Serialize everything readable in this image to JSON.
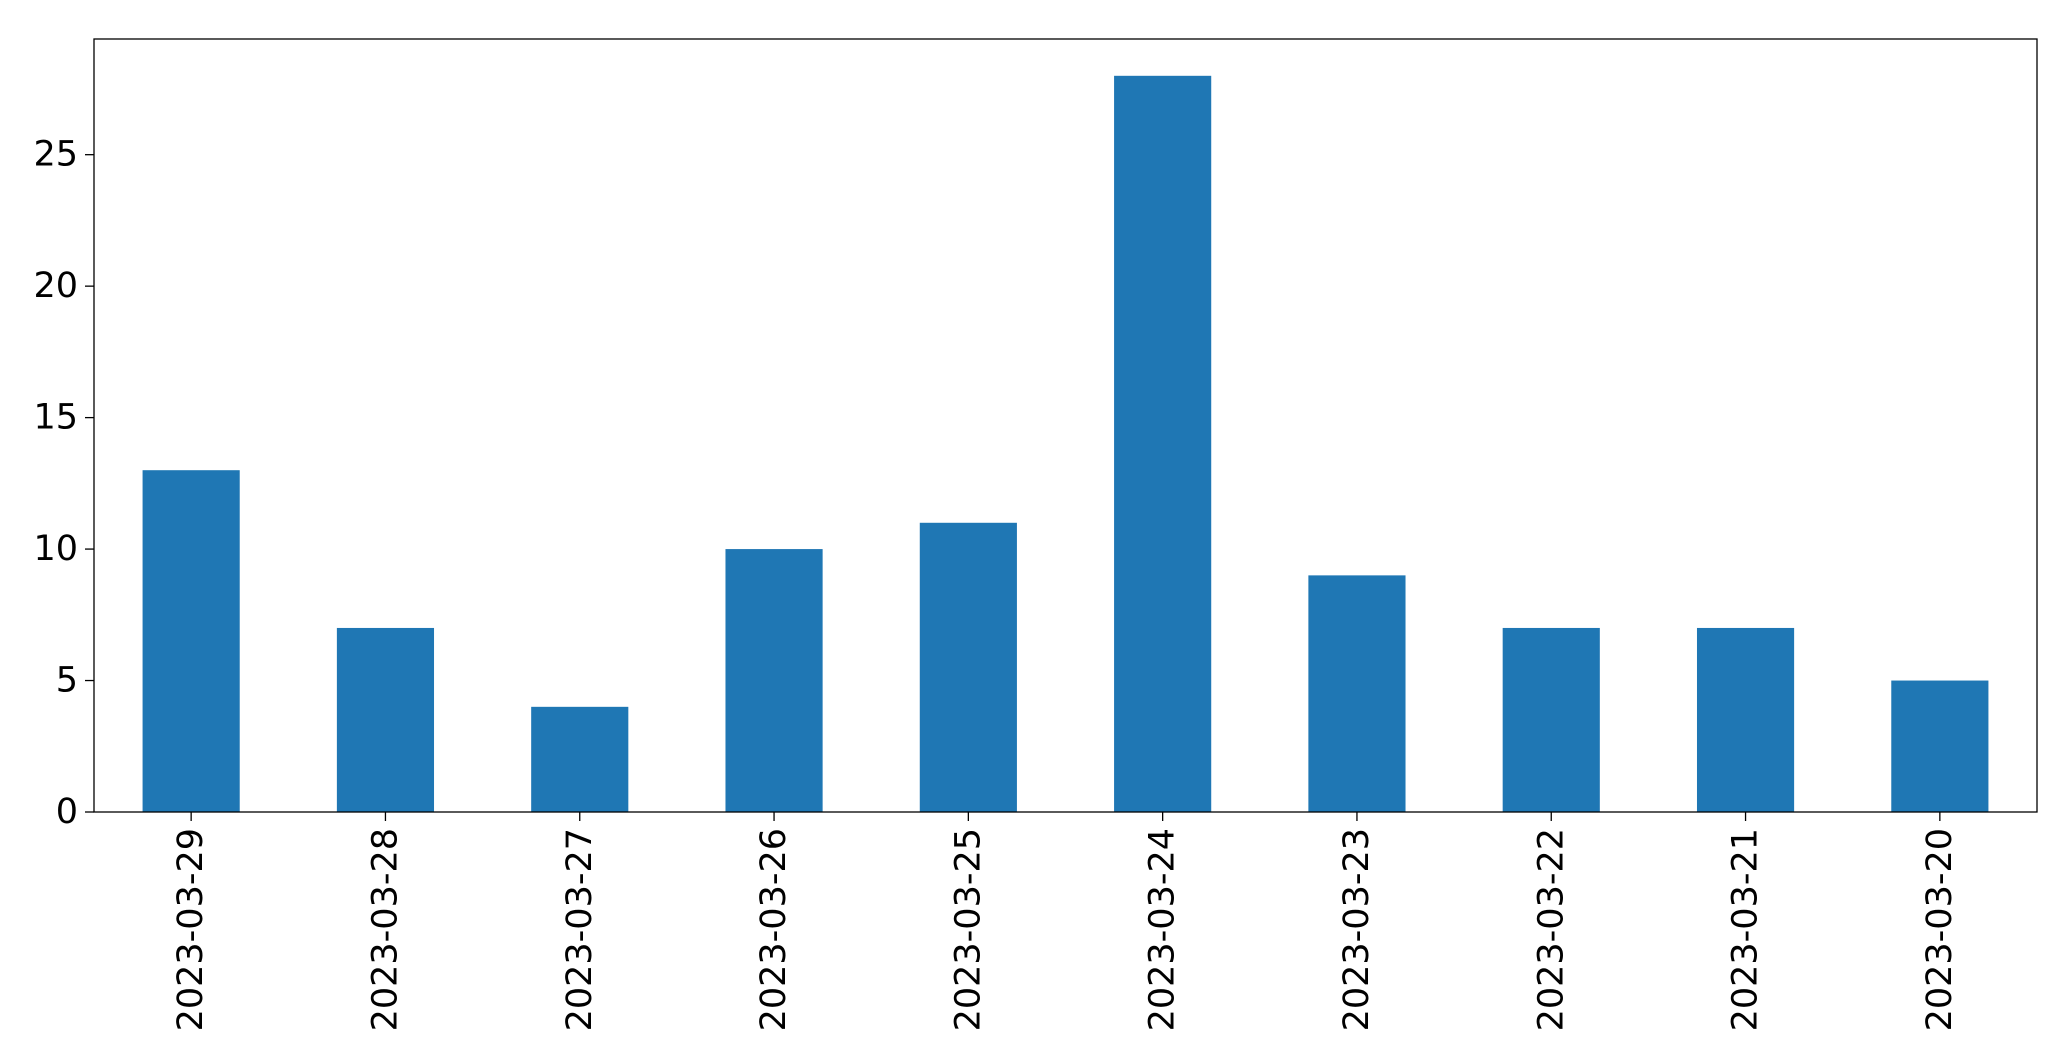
{
  "chart_data": {
    "type": "bar",
    "title": "",
    "xlabel": "",
    "ylabel": "",
    "categories": [
      "2023-03-29",
      "2023-03-28",
      "2023-03-27",
      "2023-03-26",
      "2023-03-25",
      "2023-03-24",
      "2023-03-23",
      "2023-03-22",
      "2023-03-21",
      "2023-03-20"
    ],
    "values": [
      13,
      7,
      4,
      10,
      11,
      28,
      9,
      7,
      7,
      5
    ],
    "ylim": [
      0,
      29.4
    ],
    "yticks": [
      0,
      5,
      10,
      15,
      20,
      25
    ],
    "grid": false,
    "legend": "none",
    "bar_color": "#1f77b4"
  }
}
